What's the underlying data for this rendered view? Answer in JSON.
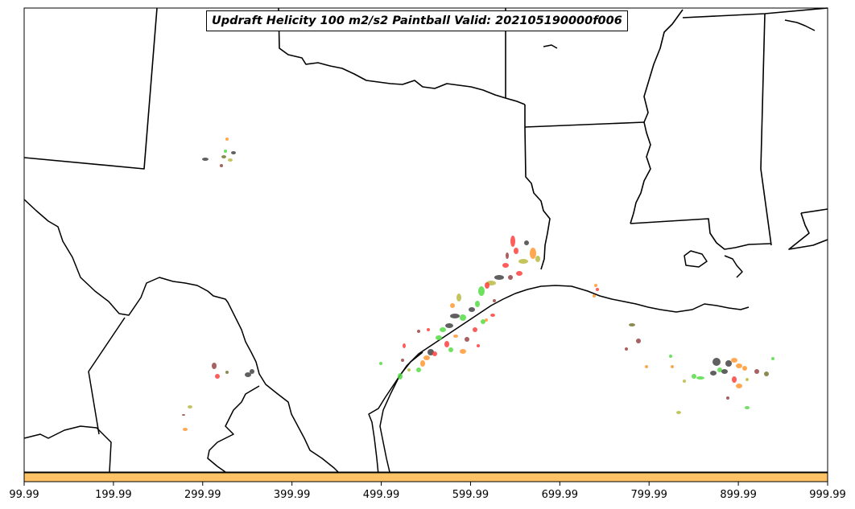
{
  "title": "Updraft Helicity 100 m2/s2 Paintball Valid: 202105190000f006",
  "colorbar": {
    "color": "#ffc266",
    "tick_labels": [
      "99.99",
      "199.99",
      "299.99",
      "399.99",
      "499.99",
      "599.99",
      "699.99",
      "799.99",
      "899.99",
      "999.99"
    ]
  },
  "paintball_colors": [
    "#ff4040",
    "#ff9933",
    "#55dd44",
    "#444444",
    "#bbbb44",
    "#994444",
    "#777733"
  ],
  "map": {
    "region": "Texas and central Gulf Coast",
    "features": [
      "state-borders",
      "coastline",
      "mexico-border"
    ]
  }
}
